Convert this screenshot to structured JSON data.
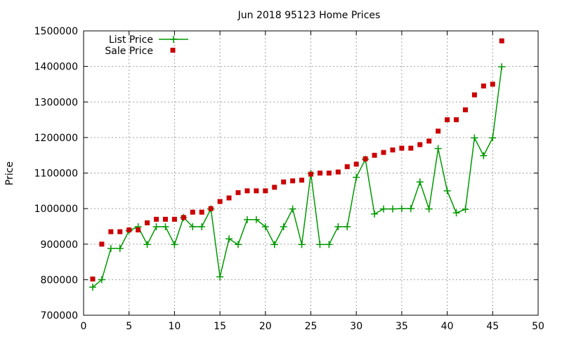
{
  "chart_data": {
    "type": "line",
    "title": "Jun 2018 95123 Home Prices",
    "xlabel": "",
    "ylabel": "Price",
    "xlim": [
      0,
      50
    ],
    "ylim": [
      700000,
      1500000
    ],
    "x_ticks": [
      0,
      5,
      10,
      15,
      20,
      25,
      30,
      35,
      40,
      45,
      50
    ],
    "y_ticks": [
      700000,
      800000,
      900000,
      1000000,
      1100000,
      1200000,
      1300000,
      1400000,
      1500000
    ],
    "grid": true,
    "legend_position": "top-left",
    "series": [
      {
        "name": "List Price",
        "style": "line-with-plus-markers",
        "color": "#009900",
        "x": [
          1,
          2,
          3,
          4,
          5,
          6,
          7,
          8,
          9,
          10,
          11,
          12,
          13,
          14,
          15,
          16,
          17,
          18,
          19,
          20,
          21,
          22,
          23,
          24,
          25,
          26,
          27,
          28,
          29,
          30,
          31,
          32,
          33,
          34,
          35,
          36,
          37,
          38,
          39,
          40,
          41,
          42,
          43,
          44,
          45,
          46
        ],
        "y": [
          779000,
          800000,
          888000,
          888000,
          938000,
          949000,
          899000,
          949000,
          949000,
          899000,
          975000,
          949000,
          949000,
          999000,
          808000,
          915000,
          899000,
          969000,
          969000,
          949000,
          899000,
          949000,
          999000,
          899000,
          1099000,
          899000,
          899000,
          949000,
          949000,
          1088000,
          1139000,
          985000,
          999000,
          999000,
          1000000,
          1000000,
          1075000,
          999000,
          1169000,
          1050000,
          988000,
          998000,
          1199000,
          1149000,
          1199000,
          1399000
        ]
      },
      {
        "name": "Sale Price",
        "style": "square-markers",
        "color": "#cc0000",
        "x": [
          1,
          2,
          3,
          4,
          5,
          6,
          7,
          8,
          9,
          10,
          11,
          12,
          13,
          14,
          15,
          16,
          17,
          18,
          19,
          20,
          21,
          22,
          23,
          24,
          25,
          26,
          27,
          28,
          29,
          30,
          31,
          32,
          33,
          34,
          35,
          36,
          37,
          38,
          39,
          40,
          41,
          42,
          43,
          44,
          45,
          46
        ],
        "y": [
          802000,
          900000,
          935000,
          935000,
          940000,
          940000,
          960000,
          970000,
          970000,
          970000,
          975000,
          990000,
          990000,
          1000000,
          1020000,
          1030000,
          1045000,
          1050000,
          1050000,
          1050000,
          1060000,
          1075000,
          1078000,
          1080000,
          1097000,
          1100000,
          1100000,
          1103000,
          1118000,
          1125000,
          1140000,
          1150000,
          1158000,
          1165000,
          1170000,
          1170000,
          1180000,
          1190000,
          1218000,
          1250000,
          1250000,
          1278000,
          1320000,
          1345000,
          1350000,
          1472000
        ]
      }
    ]
  }
}
